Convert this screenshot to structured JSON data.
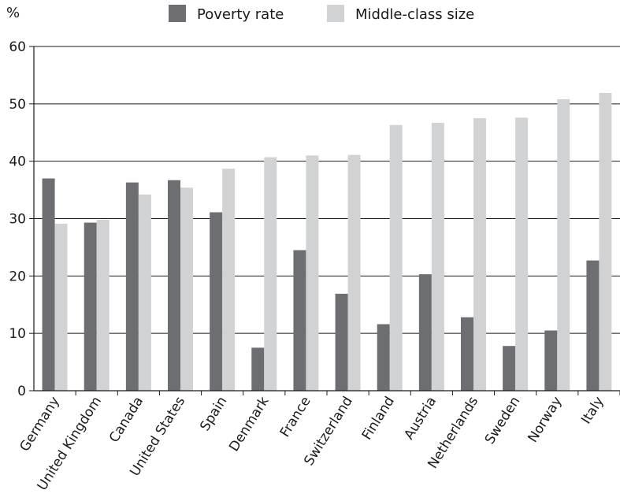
{
  "chart_data": {
    "type": "bar",
    "title": "",
    "xlabel": "",
    "ylabel": "%",
    "ylim": [
      0,
      60
    ],
    "yticks": [
      0,
      10,
      20,
      30,
      40,
      50,
      60
    ],
    "grid": true,
    "legend_position": "top",
    "categories": [
      "Germany",
      "United Kingdom",
      "Canada",
      "United States",
      "Spain",
      "Denmark",
      "France",
      "Switzerland",
      "Finland",
      "Austria",
      "Netherlands",
      "Sweden",
      "Norway",
      "Italy"
    ],
    "series": [
      {
        "name": "Poverty rate",
        "color": "#6d6e71",
        "values": [
          37.0,
          29.3,
          36.3,
          36.7,
          31.1,
          7.5,
          24.5,
          16.9,
          11.6,
          20.3,
          12.8,
          7.8,
          10.5,
          22.7
        ]
      },
      {
        "name": "Middle-class size",
        "color": "#d1d2d4",
        "values": [
          29.1,
          29.8,
          34.2,
          35.4,
          38.7,
          40.7,
          41.0,
          41.1,
          46.3,
          46.7,
          47.5,
          47.6,
          50.8,
          51.9
        ]
      }
    ]
  }
}
